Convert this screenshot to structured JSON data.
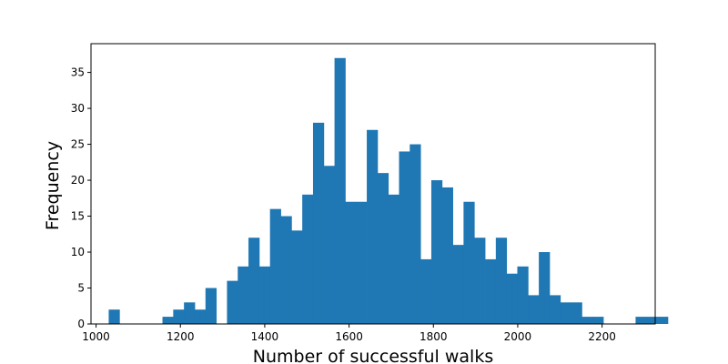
{
  "chart_data": {
    "type": "bar",
    "subtype": "histogram",
    "title": "",
    "xlabel": "Number of successful walks",
    "ylabel": "Frequency",
    "xlim": [
      988,
      2326
    ],
    "ylim": [
      0,
      39
    ],
    "xticks": [
      1000,
      1200,
      1400,
      1600,
      1800,
      2000,
      2200
    ],
    "yticks": [
      0,
      5,
      10,
      15,
      20,
      25,
      30,
      35
    ],
    "bin_start": 1030,
    "bin_width": 25.5,
    "counts": [
      2,
      0,
      0,
      0,
      0,
      1,
      2,
      3,
      2,
      5,
      0,
      6,
      8,
      12,
      8,
      16,
      15,
      13,
      18,
      28,
      22,
      37,
      17,
      17,
      27,
      21,
      18,
      24,
      25,
      9,
      20,
      19,
      11,
      17,
      12,
      9,
      12,
      7,
      8,
      4,
      10,
      4,
      3,
      3,
      1,
      1,
      0,
      0,
      0,
      1,
      1,
      1
    ],
    "bar_color": "#1f77b4",
    "grid": false,
    "legend": "none"
  }
}
